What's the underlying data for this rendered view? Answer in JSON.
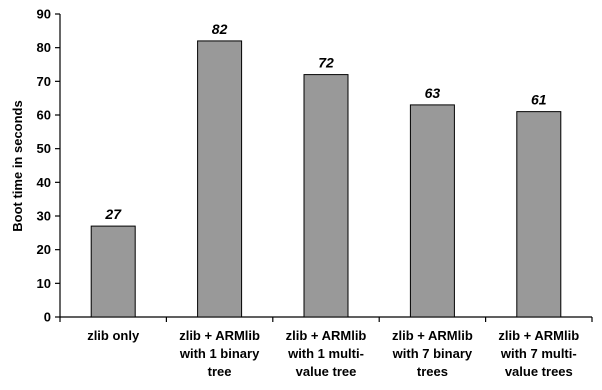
{
  "chart_data": {
    "type": "bar",
    "categories": [
      [
        "zlib only"
      ],
      [
        "zlib + ARMlib",
        "with 1 binary",
        "tree"
      ],
      [
        "zlib + ARMlib",
        "with 1 multi-",
        "value tree"
      ],
      [
        "zlib + ARMlib",
        "with 7 binary",
        "trees"
      ],
      [
        "zlib + ARMlib",
        "with 7 multi-",
        "value trees"
      ]
    ],
    "values": [
      27,
      82,
      72,
      63,
      61
    ],
    "data_labels": [
      "27",
      "82",
      "72",
      "63",
      "61"
    ],
    "xlabel": "",
    "ylabel": "Boot time in seconds",
    "ylim": [
      0,
      90
    ],
    "yticks": [
      0,
      10,
      20,
      30,
      40,
      50,
      60,
      70,
      80,
      90
    ],
    "bar_color": "#999999",
    "grid": false,
    "legend": "none"
  }
}
